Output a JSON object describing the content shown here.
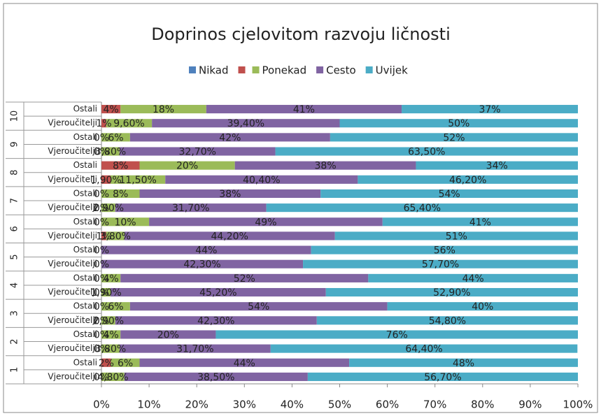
{
  "chart_data": {
    "type": "stacked-bar-horizontal",
    "title": "Doprinos cjelovitom razvoju ličnosti",
    "groups": [
      "10",
      "9",
      "8",
      "7",
      "6",
      "5",
      "4",
      "3",
      "2",
      "1"
    ],
    "categories": [
      "Ostali",
      "Vjeroučitelji",
      "Ostali",
      "Vjeroučitelji",
      "Ostali",
      "Vjeroučitelji",
      "Ostali",
      "Vjeroučitelji",
      "Ostali",
      "Vjeroučitelji",
      "Ostali",
      "Vjeroučitelji",
      "Ostali",
      "Vjeroučitelji",
      "Ostali",
      "Vjeroučitelji",
      "Ostali",
      "Vjeroučitelji",
      "Ostali",
      "Vjeroučitelji"
    ],
    "series": [
      {
        "name": "Nikad",
        "color": "#4f81bd",
        "values": [
          0,
          0,
          0,
          0,
          0,
          0,
          0,
          0,
          0,
          0,
          0,
          0,
          0,
          0,
          0,
          0,
          0,
          0,
          0,
          0
        ],
        "value_labels": [
          null,
          null,
          "0%",
          "0%",
          null,
          null,
          "0%",
          "0%",
          "0%",
          null,
          "0%",
          "0%",
          "0%",
          "0%",
          "0%",
          "0%",
          "0%",
          "0%",
          null,
          "0%"
        ]
      },
      {
        "name": null,
        "color": "#c0504d",
        "values": [
          4,
          1,
          0,
          0,
          8,
          1.9,
          0,
          0,
          0,
          1,
          0,
          0,
          0,
          0,
          0,
          0,
          0,
          0,
          2,
          0
        ],
        "value_labels": [
          "4%",
          "1%",
          null,
          null,
          "8%",
          "1,90%",
          null,
          null,
          null,
          "1%",
          null,
          null,
          null,
          null,
          null,
          null,
          null,
          null,
          "2%",
          null
        ]
      },
      {
        "name": "Ponekad",
        "color": "#9bbb59",
        "values": [
          18,
          9.6,
          6,
          3.8,
          20,
          11.5,
          8,
          2.9,
          10,
          3.8,
          0,
          0,
          4,
          1.9,
          6,
          2.9,
          4,
          3.8,
          6,
          4.8
        ],
        "value_labels": [
          "18%",
          "9,60%",
          "6%",
          "3,80%",
          "20%",
          "11,50%",
          "8%",
          "2,90%",
          "10%",
          "3,80%",
          null,
          null,
          "4%",
          "1,90%",
          "6%",
          "2,90%",
          "4%",
          "3,80%",
          "6%",
          "4,80%"
        ]
      },
      {
        "name": "Cesto",
        "color": "#8064a2",
        "values": [
          41,
          39.4,
          42,
          32.7,
          38,
          40.4,
          38,
          31.7,
          49,
          44.2,
          44,
          42.3,
          52,
          45.2,
          54,
          42.3,
          20,
          31.7,
          44,
          38.5
        ],
        "value_labels": [
          "41%",
          "39,40%",
          "42%",
          "32,70%",
          "38%",
          "40,40%",
          "38%",
          "31,70%",
          "49%",
          "44,20%",
          "44%",
          "42,30%",
          "52%",
          "45,20%",
          "54%",
          "42,30%",
          "20%",
          "31,70%",
          "44%",
          "38,50%"
        ]
      },
      {
        "name": "Uvijek",
        "color": "#4bacc6",
        "values": [
          37,
          50,
          52,
          63.5,
          34,
          46.2,
          54,
          65.4,
          41,
          51,
          56,
          57.7,
          44,
          52.9,
          40,
          54.8,
          76,
          64.4,
          48,
          56.7
        ],
        "value_labels": [
          "37%",
          "50%",
          "52%",
          "63,50%",
          "34%",
          "46,20%",
          "54%",
          "65,40%",
          "41%",
          "51%",
          "56%",
          "57,70%",
          "44%",
          "52,90%",
          "40%",
          "54,80%",
          "76%",
          "64,40%",
          "48%",
          "56,70%"
        ]
      }
    ],
    "xlim": [
      0,
      100
    ],
    "xticks": [
      {
        "value": 0,
        "label": "0%"
      },
      {
        "value": 10,
        "label": "10%"
      },
      {
        "value": 20,
        "label": "20%"
      },
      {
        "value": 30,
        "label": "30%"
      },
      {
        "value": 40,
        "label": "40%"
      },
      {
        "value": 50,
        "label": "50%"
      },
      {
        "value": 60,
        "label": "60%"
      },
      {
        "value": 70,
        "label": "70%"
      },
      {
        "value": 80,
        "label": "80%"
      },
      {
        "value": 90,
        "label": "90%"
      },
      {
        "value": 100,
        "label": "100%"
      }
    ],
    "legend": "top",
    "grid": false
  }
}
